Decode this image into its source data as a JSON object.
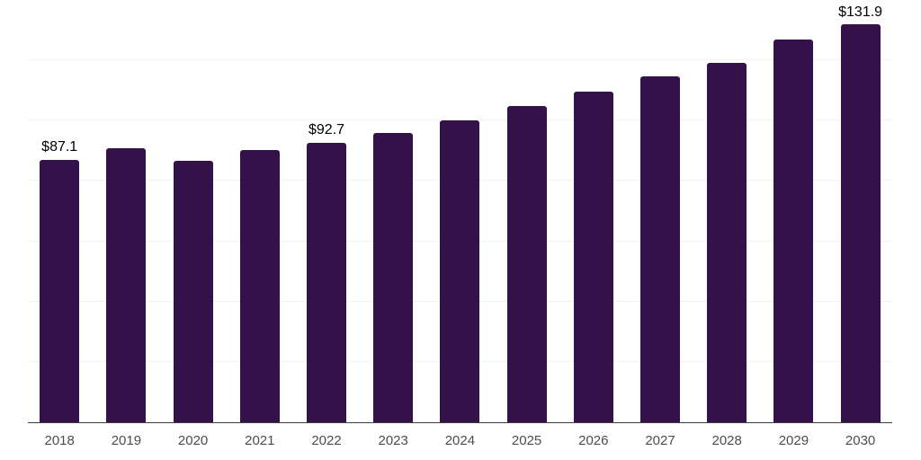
{
  "chart_data": {
    "type": "bar",
    "title": "",
    "xlabel": "",
    "ylabel": "",
    "categories": [
      "2018",
      "2019",
      "2020",
      "2021",
      "2022",
      "2023",
      "2024",
      "2025",
      "2026",
      "2027",
      "2028",
      "2029",
      "2030"
    ],
    "values": [
      87.1,
      91.0,
      86.8,
      90.4,
      92.7,
      95.9,
      100.0,
      104.8,
      109.5,
      114.6,
      119.3,
      126.9,
      131.9
    ],
    "point_labels": [
      "$87.1",
      null,
      null,
      null,
      "$92.7",
      null,
      null,
      null,
      null,
      null,
      null,
      null,
      "$131.9"
    ],
    "ylim": [
      0,
      140
    ],
    "gridline_step": 20,
    "grid": true,
    "legend": false,
    "colors": {
      "bar": "#341149",
      "gridline": "#f2f2f2",
      "axis": "#3f3f3f",
      "tick_label": "#4d4d4d",
      "data_label": "#000000",
      "background": "#ffffff"
    }
  }
}
